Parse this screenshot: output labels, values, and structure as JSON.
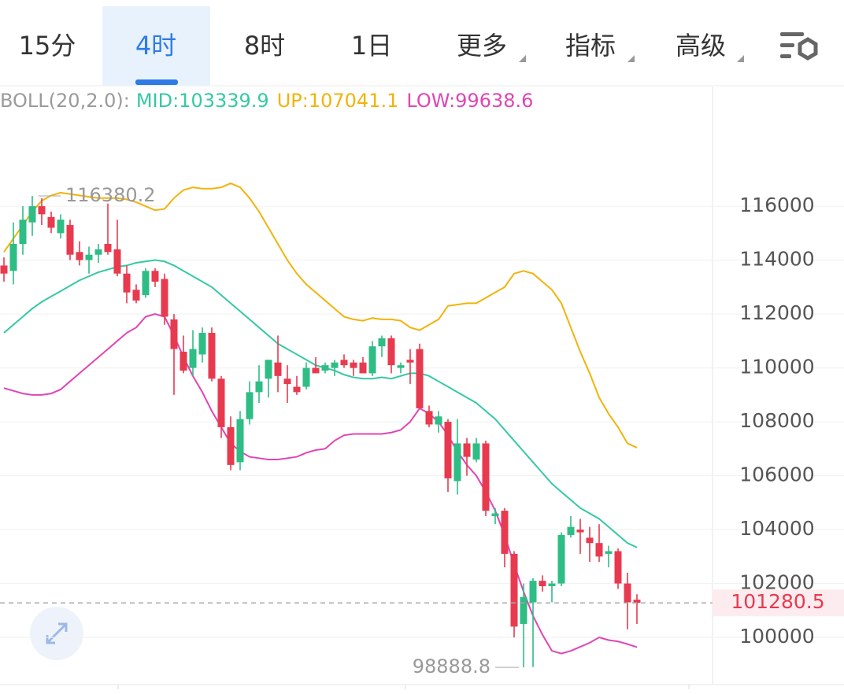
{
  "tabs": [
    "15分",
    "4时",
    "8时",
    "1日",
    "更多",
    "指标",
    "高级"
  ],
  "active_tab": 1,
  "chart_data": {
    "type": "candlestick",
    "indicator": "BOLL(20,2.0):",
    "up_color": "#2ebd85",
    "down_color": "#e83a4f",
    "open": [
      113800,
      113600,
      114600,
      115400,
      116000,
      115600,
      115000,
      115300,
      114300,
      114000,
      114200,
      114600,
      114400,
      113500,
      112900,
      112700,
      113600,
      113300,
      111800,
      110600,
      110000,
      110500,
      111300,
      109600,
      107800,
      106500,
      108100,
      109100,
      109600,
      110200,
      109600,
      109300,
      109300,
      110000,
      109900,
      110000,
      110300,
      110200,
      110200,
      109800,
      110800,
      111100,
      110000,
      110300,
      110700,
      108400,
      107900,
      108000,
      105800,
      107200,
      106600,
      107200,
      104500,
      104700,
      103100,
      100500,
      101300,
      102100,
      101900,
      102000,
      103800,
      104000,
      103700,
      103500,
      103100,
      103200,
      102000,
      101400
    ],
    "high": [
      114100,
      115400,
      116000,
      116380.2,
      116300,
      115800,
      115700,
      115500,
      114700,
      114500,
      114600,
      116100,
      115500,
      113800,
      113100,
      113700,
      113700,
      113500,
      112000,
      111200,
      111400,
      111500,
      111500,
      109700,
      108200,
      108400,
      109500,
      110100,
      110300,
      111200,
      110100,
      109700,
      110200,
      110400,
      110200,
      110300,
      110500,
      110300,
      110400,
      111000,
      111200,
      111200,
      110200,
      110700,
      110900,
      108600,
      108400,
      108100,
      108100,
      107400,
      107400,
      107300,
      104800,
      104800,
      103200,
      102000,
      102200,
      102300,
      102100,
      103900,
      104500,
      104400,
      104100,
      104200,
      103400,
      103300,
      102400,
      101600
    ],
    "low": [
      113200,
      113100,
      114200,
      114900,
      115300,
      115000,
      114800,
      114000,
      113800,
      113500,
      113900,
      114200,
      113400,
      112400,
      112400,
      112600,
      113000,
      111600,
      109000,
      109800,
      109700,
      110200,
      109500,
      107400,
      106200,
      106200,
      107900,
      108700,
      108900,
      109100,
      108700,
      109000,
      109200,
      109800,
      109800,
      109700,
      110000,
      109700,
      109800,
      109700,
      110400,
      109800,
      109800,
      109400,
      108500,
      107800,
      107600,
      105400,
      105300,
      106000,
      106500,
      104500,
      104200,
      102600,
      100000,
      98888.8,
      98900,
      101700,
      101300,
      101900,
      103700,
      103100,
      102800,
      102800,
      102600,
      101800,
      100300,
      100500
    ],
    "close": [
      113500,
      114600,
      115500,
      116000,
      115700,
      115200,
      115500,
      114200,
      114000,
      114200,
      114400,
      114300,
      113500,
      112800,
      112500,
      113600,
      113200,
      111900,
      110700,
      109900,
      110700,
      111300,
      109600,
      107800,
      106400,
      108100,
      109100,
      109500,
      110300,
      109700,
      109400,
      109100,
      110000,
      109800,
      110100,
      110200,
      110100,
      110000,
      109800,
      110800,
      111100,
      110100,
      110100,
      110200,
      108500,
      107900,
      108200,
      105900,
      107200,
      106700,
      107200,
      104700,
      104600,
      103100,
      100400,
      101500,
      102100,
      101900,
      102000,
      103800,
      104100,
      103900,
      103500,
      103000,
      103200,
      102000,
      101300,
      101280.5
    ],
    "series": [
      {
        "label": "MID:103339.9",
        "color": "#35c9a3",
        "values": [
          111300,
          111600,
          111900,
          112200,
          112450,
          112650,
          112850,
          113050,
          113250,
          113400,
          113550,
          113650,
          113750,
          113800,
          113900,
          113950,
          114000,
          113950,
          113800,
          113600,
          113400,
          113200,
          113000,
          112700,
          112400,
          112100,
          111800,
          111500,
          111200,
          110900,
          110700,
          110500,
          110300,
          110100,
          110000,
          109900,
          109750,
          109650,
          109600,
          109600,
          109650,
          109600,
          109700,
          109800,
          109800,
          109700,
          109500,
          109300,
          109100,
          108900,
          108700,
          108400,
          108100,
          107700,
          107300,
          106900,
          106500,
          106100,
          105700,
          105400,
          105100,
          104800,
          104600,
          104400,
          104100,
          103800,
          103500,
          103339.9
        ]
      },
      {
        "label": "UP:107041.1",
        "color": "#f2b30a",
        "values": [
          114300,
          114800,
          115300,
          115800,
          116200,
          116400,
          116500,
          116450,
          116400,
          116350,
          116300,
          116300,
          116300,
          116250,
          116150,
          116000,
          115850,
          115900,
          116300,
          116600,
          116700,
          116650,
          116650,
          116700,
          116850,
          116700,
          116300,
          115800,
          115200,
          114600,
          114000,
          113500,
          113100,
          112800,
          112500,
          112200,
          111900,
          111800,
          111750,
          111850,
          111800,
          111800,
          111750,
          111500,
          111400,
          111600,
          111800,
          112300,
          112350,
          112400,
          112400,
          112600,
          112800,
          113000,
          113500,
          113600,
          113500,
          113200,
          112900,
          112400,
          111500,
          110600,
          109800,
          108900,
          108300,
          107800,
          107200,
          107041.1
        ]
      },
      {
        "label": "LOW:99638.6",
        "color": "#e045b4",
        "values": [
          109250,
          109150,
          109050,
          109000,
          109000,
          109050,
          109200,
          109500,
          109800,
          110100,
          110400,
          110700,
          111000,
          111300,
          111500,
          111900,
          112000,
          111900,
          111200,
          110400,
          109700,
          109100,
          108400,
          107800,
          107200,
          106900,
          106700,
          106650,
          106600,
          106600,
          106650,
          106700,
          106850,
          106950,
          107000,
          107300,
          107500,
          107550,
          107550,
          107550,
          107550,
          107600,
          107700,
          108000,
          108500,
          108300,
          108000,
          107500,
          106900,
          106400,
          106000,
          105400,
          104700,
          103800,
          102700,
          101700,
          100800,
          100100,
          99500,
          99400,
          99500,
          99650,
          99800,
          100000,
          99900,
          99850,
          99750,
          99638.6
        ]
      }
    ],
    "max_label": 116380.2,
    "min_label": 98888.8,
    "last_price": 101280.5,
    "ylim": [
      98250,
      120440
    ],
    "yticks": [
      100000,
      102000,
      104000,
      106000,
      108000,
      110000,
      112000,
      114000,
      116000
    ],
    "grid": true
  }
}
